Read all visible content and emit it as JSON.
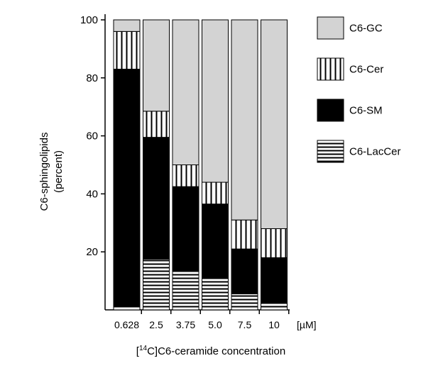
{
  "chart_data": {
    "type": "bar",
    "stacked": true,
    "categories": [
      "0.628",
      "2.5",
      "3.75",
      "5.0",
      "7.5",
      "10"
    ],
    "x_unit": "[µM]",
    "xlabel_prefix": "[",
    "xlabel_sup": "14",
    "xlabel_suffix": "C]C6-ceramide concentration",
    "ylabel_line1": "C6-sphingolipids",
    "ylabel_line2": "(percent)",
    "ylim": [
      0,
      100
    ],
    "yticks": [
      20,
      40,
      60,
      80,
      100
    ],
    "grid": false,
    "legend_position": "right",
    "series": [
      {
        "name": "C6-LacCer",
        "pattern": "horizontal-lines",
        "color": "#000000",
        "values": [
          1,
          17.5,
          13.5,
          11,
          5.5,
          2.5
        ]
      },
      {
        "name": "C6-SM",
        "pattern": "solid",
        "color": "#000000",
        "values": [
          82,
          42,
          29,
          25.5,
          15.5,
          15.5
        ]
      },
      {
        "name": "C6-Cer",
        "pattern": "vertical-lines",
        "color": "#000000",
        "values": [
          13,
          9,
          7.5,
          7.5,
          10,
          10
        ]
      },
      {
        "name": "C6-GC",
        "pattern": "solid",
        "color": "#d3d3d3",
        "values": [
          4,
          31.5,
          50,
          56,
          69,
          72
        ]
      }
    ],
    "legend_order": [
      "C6-GC",
      "C6-Cer",
      "C6-SM",
      "C6-LacCer"
    ]
  }
}
